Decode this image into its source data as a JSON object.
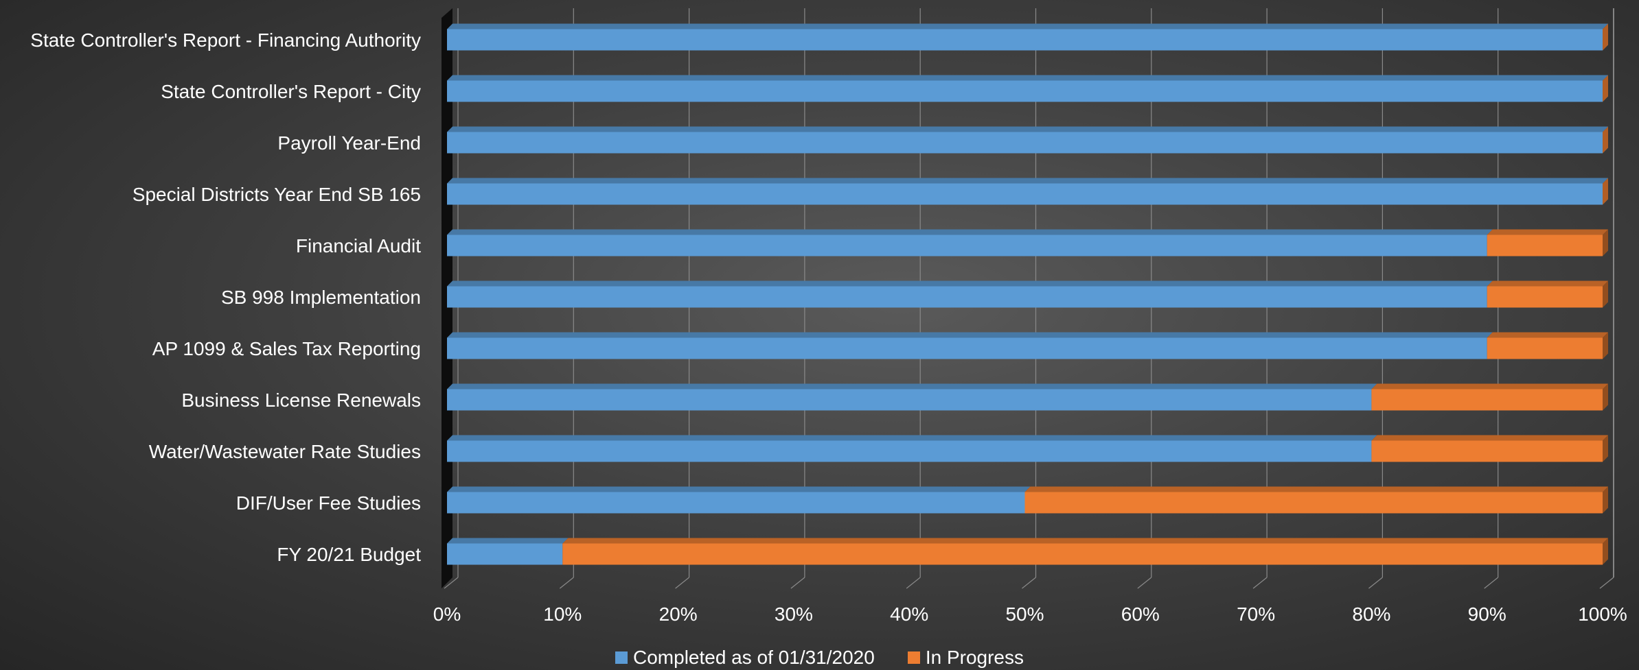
{
  "chart_data": {
    "type": "bar",
    "orientation": "horizontal",
    "stacked": "100%",
    "categories": [
      "State Controller's Report - Financing Authority",
      "State Controller's Report - City",
      "Payroll Year-End",
      "Special Districts Year End SB 165",
      "Financial Audit",
      "SB 998 Implementation",
      "AP 1099 & Sales Tax Reporting",
      "Business License Renewals",
      "Water/Wastewater Rate Studies",
      "DIF/User Fee Studies",
      "FY 20/21 Budget"
    ],
    "series": [
      {
        "name": "Completed as of 01/31/2020",
        "color": "#5b9bd5",
        "values": [
          100,
          100,
          100,
          100,
          90,
          90,
          90,
          80,
          80,
          50,
          10
        ]
      },
      {
        "name": "In Progress",
        "color": "#ed7d31",
        "values": [
          0,
          0,
          0,
          0,
          10,
          10,
          10,
          20,
          20,
          50,
          90
        ]
      }
    ],
    "x_ticks": [
      "0%",
      "10%",
      "20%",
      "30%",
      "40%",
      "50%",
      "60%",
      "70%",
      "80%",
      "90%",
      "100%"
    ],
    "xlim": [
      0,
      100
    ],
    "grid": true,
    "legend_position": "bottom",
    "title": "",
    "xlabel": "",
    "ylabel": ""
  }
}
